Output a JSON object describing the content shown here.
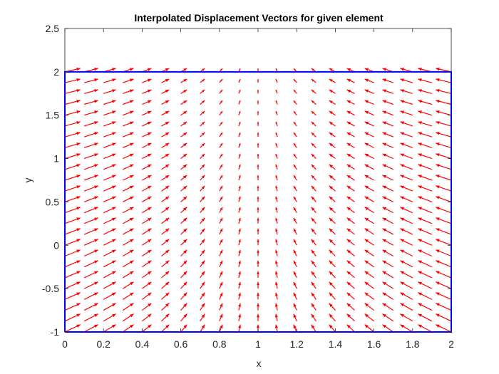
{
  "chart_data": {
    "type": "quiver",
    "title": "Interpolated Displacement Vectors for given element",
    "xlabel": "x",
    "ylabel": "y",
    "xlim": [
      0,
      2
    ],
    "ylim": [
      -1,
      2.5
    ],
    "xticks": [
      0,
      0.2,
      0.4,
      0.6,
      0.8,
      1,
      1.2,
      1.4,
      1.6,
      1.8,
      2
    ],
    "xtick_labels": [
      "0",
      "0.2",
      "0.4",
      "0.6",
      "0.8",
      "1",
      "1.2",
      "1.4",
      "1.6",
      "1.8",
      "2"
    ],
    "yticks": [
      -1,
      -0.5,
      0,
      0.5,
      1,
      1.5,
      2,
      2.5
    ],
    "ytick_labels": [
      "-1",
      "-0.5",
      "0",
      "0.5",
      "1",
      "1.5",
      "2",
      "2.5"
    ],
    "grid": false,
    "element_boundary": {
      "x": [
        0,
        2,
        2,
        0,
        0
      ],
      "y": [
        -1,
        -1,
        2,
        2,
        -1
      ],
      "color": "#0000ff"
    },
    "vector_field": {
      "x_start": 0,
      "x_end": 2,
      "nx": 21,
      "y_start": -1,
      "y_end": 2,
      "ny": 25,
      "u_formula": "0.08*(1 - x)",
      "v_formula": "0.04 + 0.015*(2 - y)",
      "color": "#ff0000"
    }
  }
}
